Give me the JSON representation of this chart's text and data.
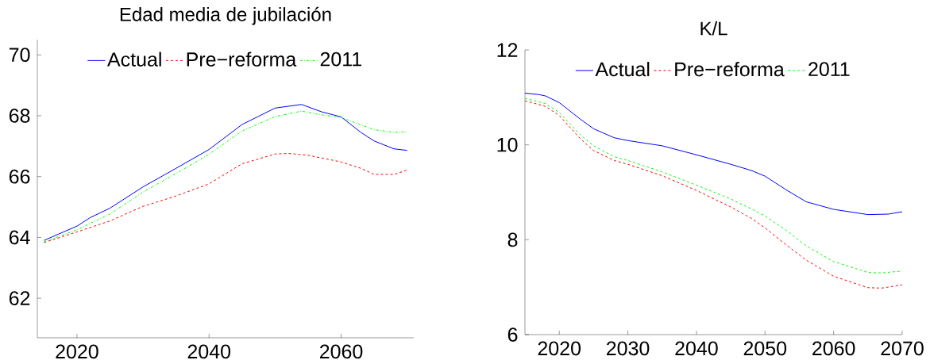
{
  "chart_data": [
    {
      "type": "line",
      "title": "Edad media de jubilación",
      "xlim": [
        2014,
        2071
      ],
      "ylim": [
        60.7,
        70.5
      ],
      "xticks": [
        2020,
        2040,
        2060
      ],
      "yticks": [
        62,
        64,
        66,
        68,
        70
      ],
      "legend": "top",
      "grid": false,
      "series": [
        {
          "name": "Actual",
          "color": "#0000ff",
          "line_style": "solid",
          "x": [
            2015,
            2020,
            2022,
            2025,
            2030,
            2035,
            2040,
            2045,
            2050,
            2054,
            2057,
            2060,
            2063,
            2065,
            2068,
            2070
          ],
          "values": [
            63.9,
            64.37,
            64.65,
            64.96,
            65.66,
            66.27,
            66.89,
            67.71,
            68.25,
            68.37,
            68.13,
            67.96,
            67.45,
            67.17,
            66.91,
            66.86
          ]
        },
        {
          "name": "Pre−reforma",
          "color": "#ff0000",
          "line_style": "dashed",
          "x": [
            2015,
            2020,
            2025,
            2030,
            2035,
            2040,
            2045,
            2050,
            2052,
            2055,
            2060,
            2063,
            2065,
            2068,
            2070
          ],
          "values": [
            63.83,
            64.18,
            64.54,
            65.02,
            65.36,
            65.76,
            66.42,
            66.74,
            66.76,
            66.7,
            66.48,
            66.27,
            66.07,
            66.07,
            66.21
          ]
        },
        {
          "name": "2011",
          "color": "#00ff00",
          "line_style": "dashdot",
          "x": [
            2015,
            2020,
            2025,
            2030,
            2035,
            2040,
            2045,
            2050,
            2054,
            2057,
            2060,
            2063,
            2065,
            2068,
            2070
          ],
          "values": [
            63.85,
            64.25,
            64.77,
            65.49,
            66.1,
            66.73,
            67.5,
            67.97,
            68.15,
            68.03,
            67.94,
            67.7,
            67.54,
            67.45,
            67.47
          ]
        }
      ]
    },
    {
      "type": "line",
      "title": "K/L",
      "xlim": [
        2015,
        2070
      ],
      "ylim": [
        6,
        12
      ],
      "xticks": [
        2020,
        2030,
        2040,
        2050,
        2060,
        2070
      ],
      "yticks": [
        6,
        8,
        10,
        12
      ],
      "legend": "top",
      "grid": false,
      "series": [
        {
          "name": "Actual",
          "color": "#0000ff",
          "line_style": "solid",
          "x": [
            2015,
            2017,
            2018,
            2020,
            2023,
            2025,
            2028,
            2030,
            2035,
            2040,
            2045,
            2048,
            2050,
            2053,
            2056,
            2060,
            2065,
            2068,
            2070
          ],
          "values": [
            11.09,
            11.06,
            11.03,
            10.89,
            10.55,
            10.34,
            10.15,
            10.09,
            9.98,
            9.79,
            9.59,
            9.46,
            9.34,
            9.06,
            8.8,
            8.64,
            8.53,
            8.54,
            8.59
          ]
        },
        {
          "name": "Pre−reforma",
          "color": "#ff0000",
          "line_style": "dashed",
          "x": [
            2015,
            2018,
            2020,
            2023,
            2025,
            2028,
            2030,
            2035,
            2040,
            2045,
            2048,
            2050,
            2053,
            2056,
            2060,
            2065,
            2067,
            2070
          ],
          "values": [
            10.93,
            10.81,
            10.62,
            10.14,
            9.88,
            9.67,
            9.59,
            9.35,
            9.04,
            8.69,
            8.45,
            8.25,
            7.9,
            7.57,
            7.23,
            6.99,
            6.98,
            7.05
          ]
        },
        {
          "name": "2011",
          "color": "#00ff00",
          "line_style": "dashed",
          "x": [
            2015,
            2018,
            2020,
            2023,
            2025,
            2028,
            2030,
            2035,
            2040,
            2045,
            2048,
            2050,
            2053,
            2056,
            2060,
            2065,
            2067,
            2070
          ],
          "values": [
            10.98,
            10.87,
            10.68,
            10.22,
            9.98,
            9.75,
            9.67,
            9.43,
            9.15,
            8.86,
            8.65,
            8.5,
            8.21,
            7.87,
            7.54,
            7.31,
            7.3,
            7.34
          ]
        }
      ]
    }
  ]
}
